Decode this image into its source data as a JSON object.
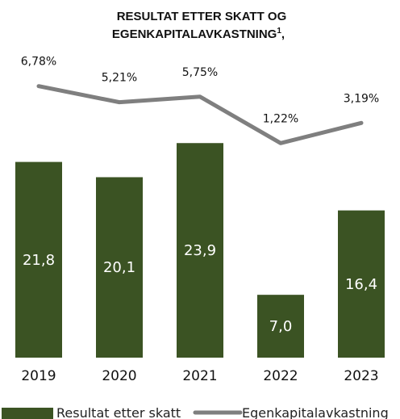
{
  "chart_data": {
    "type": "bar",
    "title_line1": "RESULTAT ETTER SKATT OG",
    "title_line2": "EGENKAPITALAVKASTNING",
    "title_sup": "1",
    "title_suffix": ",",
    "categories": [
      "2019",
      "2020",
      "2021",
      "2022",
      "2023"
    ],
    "series": [
      {
        "name": "Resultat etter skatt",
        "type": "bar",
        "values": [
          21.8,
          20.1,
          23.9,
          7.0,
          16.4
        ],
        "labels": [
          "21,8",
          "20,1",
          "23,9",
          "7,0",
          "16,4"
        ],
        "color": "#3b5323"
      },
      {
        "name": "Egenkapitalavkastning",
        "type": "line",
        "values": [
          6.78,
          5.21,
          5.75,
          1.22,
          3.19
        ],
        "labels": [
          "6,78%",
          "5,21%",
          "5,75%",
          "1,22%",
          "3,19%"
        ],
        "color": "#7f7f7f"
      }
    ],
    "grid": false,
    "legend": "bottom"
  }
}
